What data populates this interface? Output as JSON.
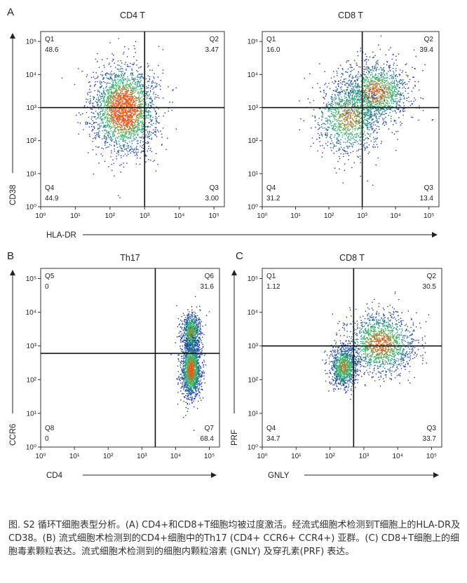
{
  "panel_letters": [
    "A",
    "B",
    "C"
  ],
  "caption": "图. S2 循环T细胞表型分析。(A) CD4+和CD8+T细胞均被过度激活。经流式细胞术检测到T细胞上的HLA-DR及CD38。(B) 流式细胞术检测到的CD4+细胞中的Th17 (CD4+ CCR6+ CCR4+) 亚群。(C) CD8+T细胞上的细胞毒素颗粒表达。流式细胞术检测到的细胞内颗粒溶素 (GNLY) 及穿孔素(PRF) 表达。",
  "colors": {
    "density_low": "#1a2fb0",
    "density_mid": "#2fbf6a",
    "density_high": "#e85a1a",
    "gate_line": "#111111"
  },
  "chart_data": [
    {
      "type": "scatter",
      "panel": "A",
      "title": "CD4 T",
      "xlabel": "HLA-DR",
      "ylabel": "CD38",
      "x_scale": "log",
      "y_scale": "log",
      "xlim": [
        1,
        200000
      ],
      "ylim": [
        1,
        200000
      ],
      "x_ticks": [
        "10⁰",
        "10¹",
        "10²",
        "10³",
        "10⁴",
        "10⁵"
      ],
      "y_ticks": [
        "10⁰",
        "10¹",
        "10²",
        "10³",
        "10⁴",
        "10⁵"
      ],
      "gate": {
        "x": 1000,
        "y": 1000
      },
      "quadrants": [
        {
          "name": "Q1",
          "value": "48.6"
        },
        {
          "name": "Q2",
          "value": "3.47"
        },
        {
          "name": "Q3",
          "value": "3.00"
        },
        {
          "name": "Q4",
          "value": "44.9"
        }
      ],
      "populations": [
        {
          "cx": 250,
          "cy": 900,
          "sx": 0.45,
          "sy": 0.65,
          "w": 1.0
        }
      ]
    },
    {
      "type": "scatter",
      "panel": "A",
      "title": "CD8 T",
      "xlabel": "",
      "ylabel": "",
      "x_scale": "log",
      "y_scale": "log",
      "xlim": [
        1,
        200000
      ],
      "ylim": [
        1,
        200000
      ],
      "x_ticks": [
        "10⁰",
        "10¹",
        "10²",
        "10³",
        "10⁴",
        "10⁵"
      ],
      "y_ticks": [
        "10⁰",
        "10¹",
        "10²",
        "10³",
        "10⁴",
        "10⁵"
      ],
      "gate": {
        "x": 1000,
        "y": 1000
      },
      "quadrants": [
        {
          "name": "Q1",
          "value": "16.0"
        },
        {
          "name": "Q2",
          "value": "39.4"
        },
        {
          "name": "Q3",
          "value": "13.4"
        },
        {
          "name": "Q4",
          "value": "31.2"
        }
      ],
      "populations": [
        {
          "cx": 2500,
          "cy": 3000,
          "sx": 0.5,
          "sy": 0.45,
          "w": 0.55
        },
        {
          "cx": 400,
          "cy": 500,
          "sx": 0.5,
          "sy": 0.55,
          "w": 0.45
        }
      ]
    },
    {
      "type": "scatter",
      "panel": "B",
      "title": "Th17",
      "xlabel": "CD4",
      "ylabel": "CCR6",
      "x_scale": "log",
      "y_scale": "log",
      "xlim": [
        1,
        200000
      ],
      "ylim": [
        1,
        200000
      ],
      "x_ticks": [
        "10⁰",
        "10¹",
        "10²",
        "10³",
        "10⁴",
        "10⁵"
      ],
      "y_ticks": [
        "10⁰",
        "10¹",
        "10²",
        "10³",
        "10⁴",
        "10⁵"
      ],
      "gate": {
        "x": 2500,
        "y": 600
      },
      "quadrants": [
        {
          "name": "Q5",
          "value": "0"
        },
        {
          "name": "Q6",
          "value": "31.6"
        },
        {
          "name": "Q7",
          "value": "68.4"
        },
        {
          "name": "Q8",
          "value": "0"
        }
      ],
      "populations": [
        {
          "cx": 28000,
          "cy": 2500,
          "sx": 0.14,
          "sy": 0.3,
          "w": 0.35
        },
        {
          "cx": 28000,
          "cy": 200,
          "sx": 0.14,
          "sy": 0.4,
          "w": 0.65
        }
      ]
    },
    {
      "type": "scatter",
      "panel": "C",
      "title": "CD8 T",
      "xlabel": "GNLY",
      "ylabel": "PRF",
      "x_scale": "log",
      "y_scale": "log",
      "xlim": [
        1,
        200000
      ],
      "ylim": [
        1,
        200000
      ],
      "x_ticks": [
        "10⁰",
        "10¹",
        "10²",
        "10³",
        "10⁴",
        "10⁵"
      ],
      "y_ticks": [
        "10⁰",
        "10¹",
        "10²",
        "10³",
        "10⁴",
        "10⁵"
      ],
      "gate": {
        "x": 500,
        "y": 1000
      },
      "quadrants": [
        {
          "name": "Q1",
          "value": "1.12"
        },
        {
          "name": "Q2",
          "value": "30.5"
        },
        {
          "name": "Q3",
          "value": "33.7"
        },
        {
          "name": "Q4",
          "value": "34.7"
        }
      ],
      "populations": [
        {
          "cx": 3000,
          "cy": 1200,
          "sx": 0.5,
          "sy": 0.45,
          "w": 0.6
        },
        {
          "cx": 250,
          "cy": 250,
          "sx": 0.2,
          "sy": 0.3,
          "w": 0.4
        }
      ]
    }
  ]
}
